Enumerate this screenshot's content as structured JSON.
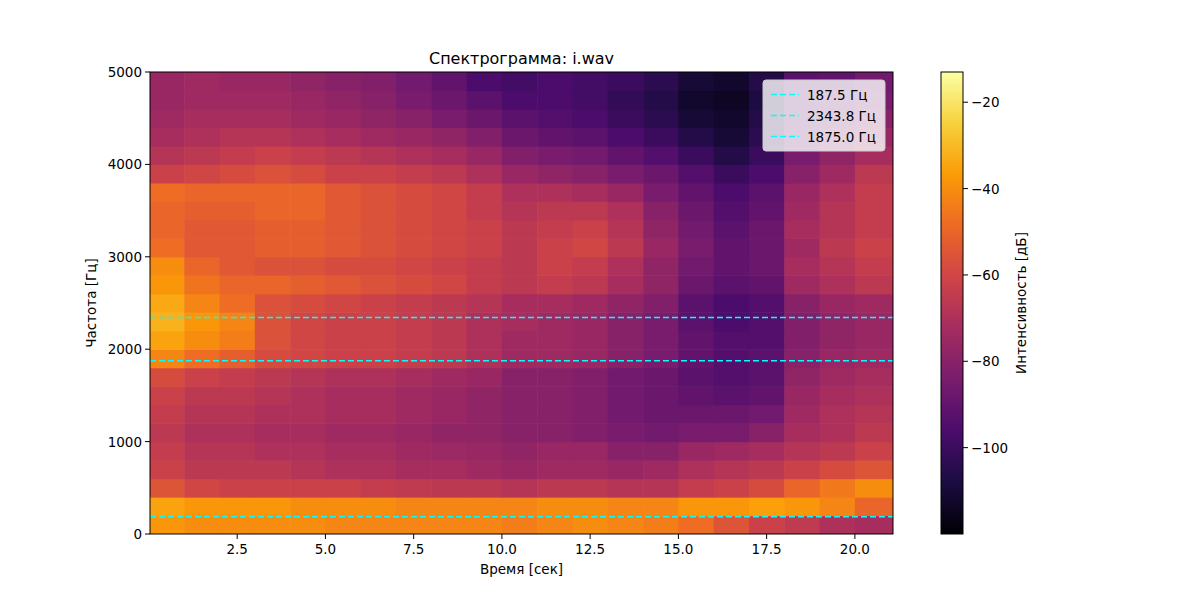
{
  "chart_data": {
    "type": "heatmap",
    "title": "Спектрограмма: i.wav",
    "x_label": "Время [сек]",
    "y_label": "Частота [Гц]",
    "xlim": [
      0.03,
      21.08
    ],
    "ylim": [
      0,
      5000
    ],
    "xticks": [
      2.5,
      {
        "value": 5,
        "label": "5.0"
      },
      7.5,
      {
        "value": 10,
        "label": "10.0"
      },
      12.5,
      {
        "value": 15,
        "label": "15.0"
      },
      17.5,
      {
        "value": 20,
        "label": "20.0"
      }
    ],
    "yticks": [
      0,
      1000,
      2000,
      3000,
      4000,
      5000
    ],
    "x_bins": [
      0.03,
      1,
      2,
      3,
      4,
      5,
      6,
      7,
      8,
      9,
      10,
      11,
      12,
      13,
      14,
      15,
      16,
      17,
      18,
      19,
      20,
      21.08
    ],
    "y_bins": [
      0,
      200,
      400,
      600,
      800,
      1000,
      1200,
      1400,
      1600,
      1800,
      2000,
      2200,
      2400,
      2600,
      2800,
      3000,
      3200,
      3400,
      3600,
      3800,
      4000,
      4200,
      4400,
      4600,
      4800,
      5000
    ],
    "values": [
      [
        -38,
        -40,
        -40,
        -40,
        -40,
        -42,
        -42,
        -42,
        -42,
        -42,
        -44,
        -42,
        -40,
        -42,
        -44,
        -48,
        -55,
        -62,
        -65,
        -70,
        -72
      ],
      [
        -35,
        -38,
        -38,
        -38,
        -40,
        -40,
        -40,
        -42,
        -42,
        -42,
        -42,
        -40,
        -40,
        -42,
        -42,
        -38,
        -38,
        -36,
        -38,
        -42,
        -50
      ],
      [
        -55,
        -60,
        -62,
        -62,
        -62,
        -62,
        -64,
        -65,
        -66,
        -66,
        -68,
        -66,
        -66,
        -68,
        -68,
        -64,
        -62,
        -58,
        -50,
        -45,
        -40
      ],
      [
        -62,
        -66,
        -66,
        -66,
        -68,
        -70,
        -70,
        -72,
        -72,
        -74,
        -76,
        -74,
        -74,
        -76,
        -74,
        -70,
        -68,
        -66,
        -62,
        -58,
        -55
      ],
      [
        -64,
        -68,
        -68,
        -70,
        -70,
        -72,
        -72,
        -74,
        -75,
        -76,
        -78,
        -76,
        -76,
        -80,
        -80,
        -76,
        -74,
        -72,
        -68,
        -66,
        -62
      ],
      [
        -66,
        -70,
        -70,
        -72,
        -72,
        -74,
        -74,
        -76,
        -78,
        -78,
        -80,
        -80,
        -82,
        -84,
        -86,
        -84,
        -84,
        -80,
        -72,
        -70,
        -66
      ],
      [
        -64,
        -68,
        -68,
        -70,
        -70,
        -72,
        -72,
        -74,
        -76,
        -78,
        -80,
        -80,
        -82,
        -86,
        -88,
        -88,
        -88,
        -86,
        -74,
        -70,
        -68
      ],
      [
        -62,
        -66,
        -66,
        -68,
        -70,
        -72,
        -72,
        -74,
        -76,
        -78,
        -80,
        -80,
        -82,
        -86,
        -88,
        -90,
        -92,
        -90,
        -76,
        -72,
        -70
      ],
      [
        -58,
        -62,
        -64,
        -66,
        -68,
        -70,
        -70,
        -72,
        -74,
        -76,
        -80,
        -80,
        -82,
        -86,
        -88,
        -92,
        -94,
        -92,
        -78,
        -74,
        -72
      ],
      [
        -42,
        -48,
        -52,
        -58,
        -60,
        -62,
        -62,
        -64,
        -66,
        -70,
        -74,
        -74,
        -76,
        -80,
        -84,
        -90,
        -94,
        -92,
        -80,
        -76,
        -74
      ],
      [
        -35,
        -40,
        -44,
        -56,
        -60,
        -62,
        -62,
        -64,
        -66,
        -70,
        -74,
        -74,
        -76,
        -80,
        -84,
        -90,
        -94,
        -94,
        -82,
        -78,
        -76
      ],
      [
        -32,
        -38,
        -42,
        -56,
        -60,
        -62,
        -62,
        -64,
        -66,
        -70,
        -72,
        -74,
        -76,
        -80,
        -84,
        -92,
        -96,
        -94,
        -82,
        -78,
        -76
      ],
      [
        -34,
        -42,
        -48,
        -56,
        -58,
        -60,
        -62,
        -64,
        -66,
        -68,
        -72,
        -72,
        -74,
        -78,
        -82,
        -92,
        -96,
        -94,
        -80,
        -76,
        -74
      ],
      [
        -38,
        -46,
        -50,
        -50,
        -52,
        -54,
        -56,
        -58,
        -60,
        -64,
        -66,
        -64,
        -66,
        -72,
        -78,
        -88,
        -92,
        -90,
        -74,
        -70,
        -66
      ],
      [
        -40,
        -50,
        -54,
        -56,
        -56,
        -58,
        -58,
        -60,
        -62,
        -64,
        -66,
        -62,
        -64,
        -70,
        -78,
        -86,
        -90,
        -88,
        -72,
        -68,
        -64
      ],
      [
        -48,
        -54,
        -54,
        -52,
        -52,
        -54,
        -56,
        -58,
        -60,
        -62,
        -66,
        -62,
        -60,
        -66,
        -76,
        -84,
        -90,
        -88,
        -74,
        -66,
        -62
      ],
      [
        -50,
        -54,
        -54,
        -52,
        -52,
        -54,
        -56,
        -58,
        -60,
        -62,
        -66,
        -64,
        -62,
        -68,
        -78,
        -86,
        -92,
        -88,
        -72,
        -68,
        -64
      ],
      [
        -50,
        -52,
        -52,
        -50,
        -50,
        -54,
        -56,
        -58,
        -60,
        -64,
        -68,
        -66,
        -66,
        -70,
        -80,
        -88,
        -94,
        -90,
        -74,
        -68,
        -64
      ],
      [
        -48,
        -50,
        -50,
        -50,
        -50,
        -54,
        -56,
        -58,
        -60,
        -64,
        -70,
        -70,
        -72,
        -76,
        -84,
        -90,
        -96,
        -92,
        -76,
        -70,
        -64
      ],
      [
        -62,
        -60,
        -58,
        -56,
        -58,
        -62,
        -62,
        -64,
        -66,
        -70,
        -76,
        -78,
        -80,
        -84,
        -88,
        -94,
        -100,
        -96,
        -80,
        -74,
        -66
      ],
      [
        -68,
        -66,
        -64,
        -62,
        -64,
        -66,
        -68,
        -70,
        -72,
        -76,
        -82,
        -84,
        -86,
        -90,
        -94,
        -100,
        -106,
        -100,
        -84,
        -78,
        -72
      ],
      [
        -72,
        -70,
        -68,
        -68,
        -70,
        -72,
        -74,
        -76,
        -78,
        -82,
        -88,
        -90,
        -92,
        -96,
        -100,
        -106,
        -110,
        -104,
        -88,
        -82,
        -76
      ],
      [
        -74,
        -72,
        -72,
        -72,
        -74,
        -76,
        -78,
        -80,
        -84,
        -88,
        -92,
        -94,
        -96,
        -100,
        -104,
        -110,
        -112,
        -106,
        -90,
        -86,
        -80
      ],
      [
        -76,
        -74,
        -74,
        -74,
        -76,
        -78,
        -80,
        -84,
        -88,
        -92,
        -96,
        -96,
        -98,
        -102,
        -106,
        -112,
        -114,
        -108,
        -92,
        -88,
        -84
      ],
      [
        -76,
        -74,
        -76,
        -76,
        -78,
        -80,
        -82,
        -86,
        -90,
        -96,
        -98,
        -96,
        -98,
        -100,
        -104,
        -110,
        -112,
        -106,
        -92,
        -90,
        -86
      ]
    ],
    "colorbar_label": "Интенсивность [дБ]",
    "colorbar_lim": [
      -120,
      -13
    ],
    "colorbar_ticks": [
      {
        "value": -20,
        "label": "−20"
      },
      {
        "value": -40,
        "label": "−40"
      },
      {
        "value": -60,
        "label": "−60"
      },
      {
        "value": -80,
        "label": "−80"
      },
      {
        "value": -100,
        "label": "−100"
      }
    ],
    "series": [
      {
        "name": "187.5 Гц",
        "type": "hline",
        "color": "#00ffff",
        "line_style": "dashed",
        "values": [
          187.5
        ]
      },
      {
        "name": "2343.8 Гц",
        "type": "hline",
        "color": "#00ffff",
        "line_style": "dashed",
        "values": [
          2343.8
        ]
      },
      {
        "name": "1875.0 Гц",
        "type": "hline",
        "color": "#00ffff",
        "line_style": "dashed",
        "values": [
          1875.0
        ]
      }
    ],
    "legend": "upper right"
  }
}
